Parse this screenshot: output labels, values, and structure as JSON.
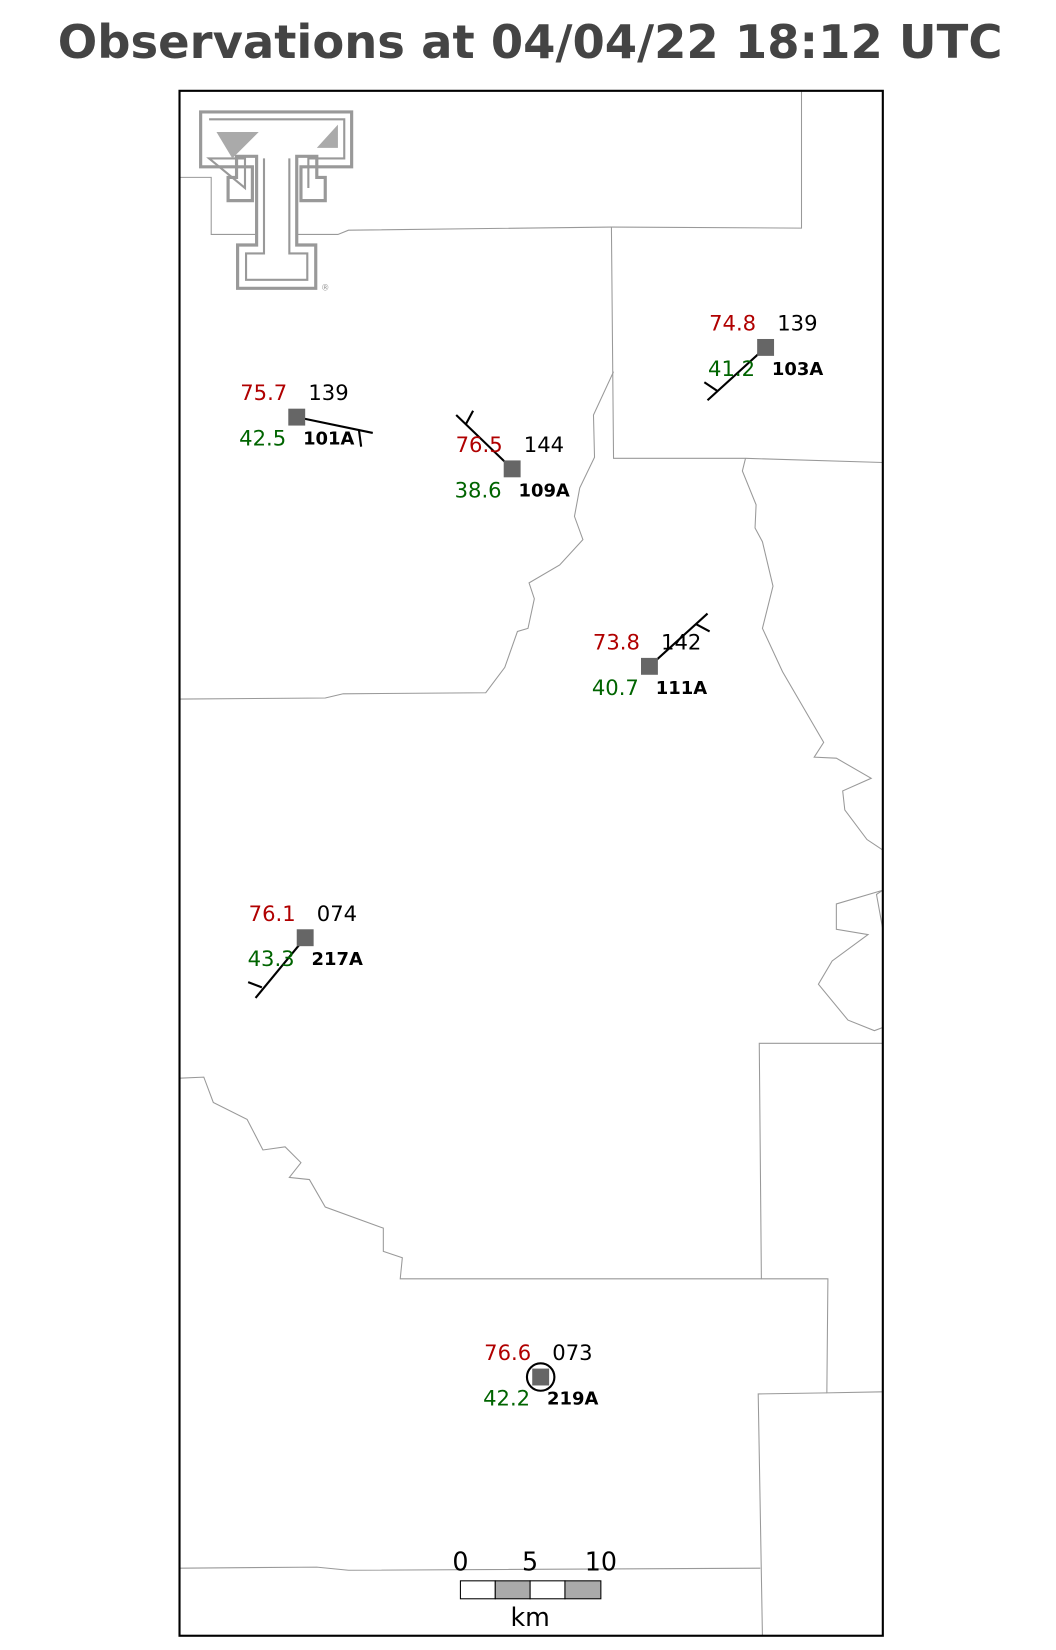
{
  "title": "Observations at 04/04/22 18:12 UTC",
  "stations": [
    {
      "id": "101A",
      "temperature": "75.7",
      "dewpoint": "42.5",
      "pressure": "139"
    },
    {
      "id": "109A",
      "temperature": "76.5",
      "dewpoint": "38.6",
      "pressure": "144"
    },
    {
      "id": "103A",
      "temperature": "74.8",
      "dewpoint": "41.2",
      "pressure": "139"
    },
    {
      "id": "111A",
      "temperature": "73.8",
      "dewpoint": "40.7",
      "pressure": "142"
    },
    {
      "id": "217A",
      "temperature": "76.1",
      "dewpoint": "43.3",
      "pressure": "074"
    },
    {
      "id": "219A",
      "temperature": "76.6",
      "dewpoint": "42.2",
      "pressure": "073"
    }
  ],
  "scale_bar": {
    "labels": [
      "0",
      "5",
      "10"
    ],
    "unit": "km"
  }
}
